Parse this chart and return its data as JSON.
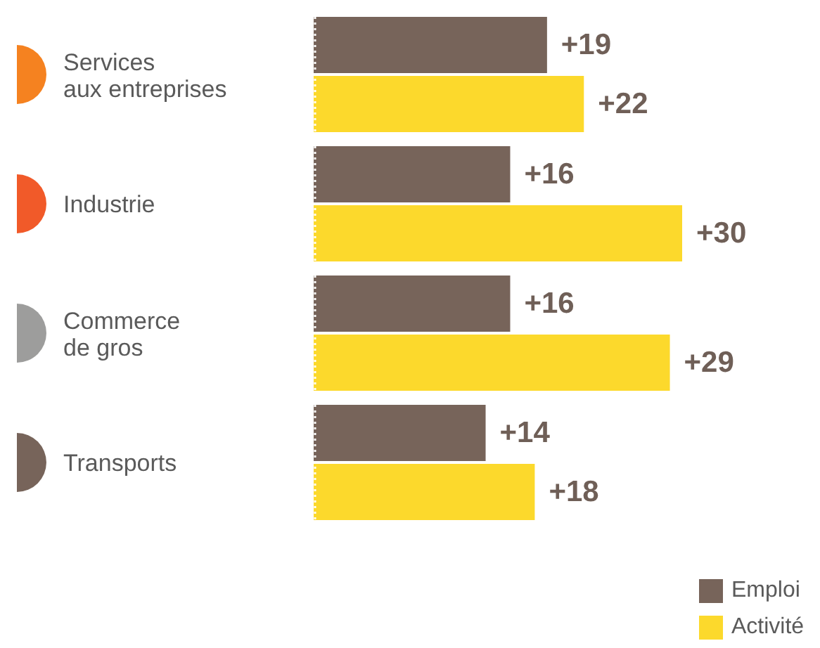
{
  "chart_data": {
    "type": "bar",
    "orientation": "horizontal",
    "categories": [
      "Services aux entreprises",
      "Industrie",
      "Commerce de gros",
      "Transports"
    ],
    "series": [
      {
        "name": "Emploi",
        "color": "#77645a",
        "values": [
          19,
          16,
          16,
          14
        ],
        "value_labels": [
          "+19",
          "+16",
          "+16",
          "+14"
        ]
      },
      {
        "name": "Activité",
        "color": "#fcd92c",
        "values": [
          22,
          30,
          29,
          18
        ],
        "value_labels": [
          "+22",
          "+30",
          "+29",
          "+18"
        ]
      }
    ],
    "legend": "bottom right"
  }
}
